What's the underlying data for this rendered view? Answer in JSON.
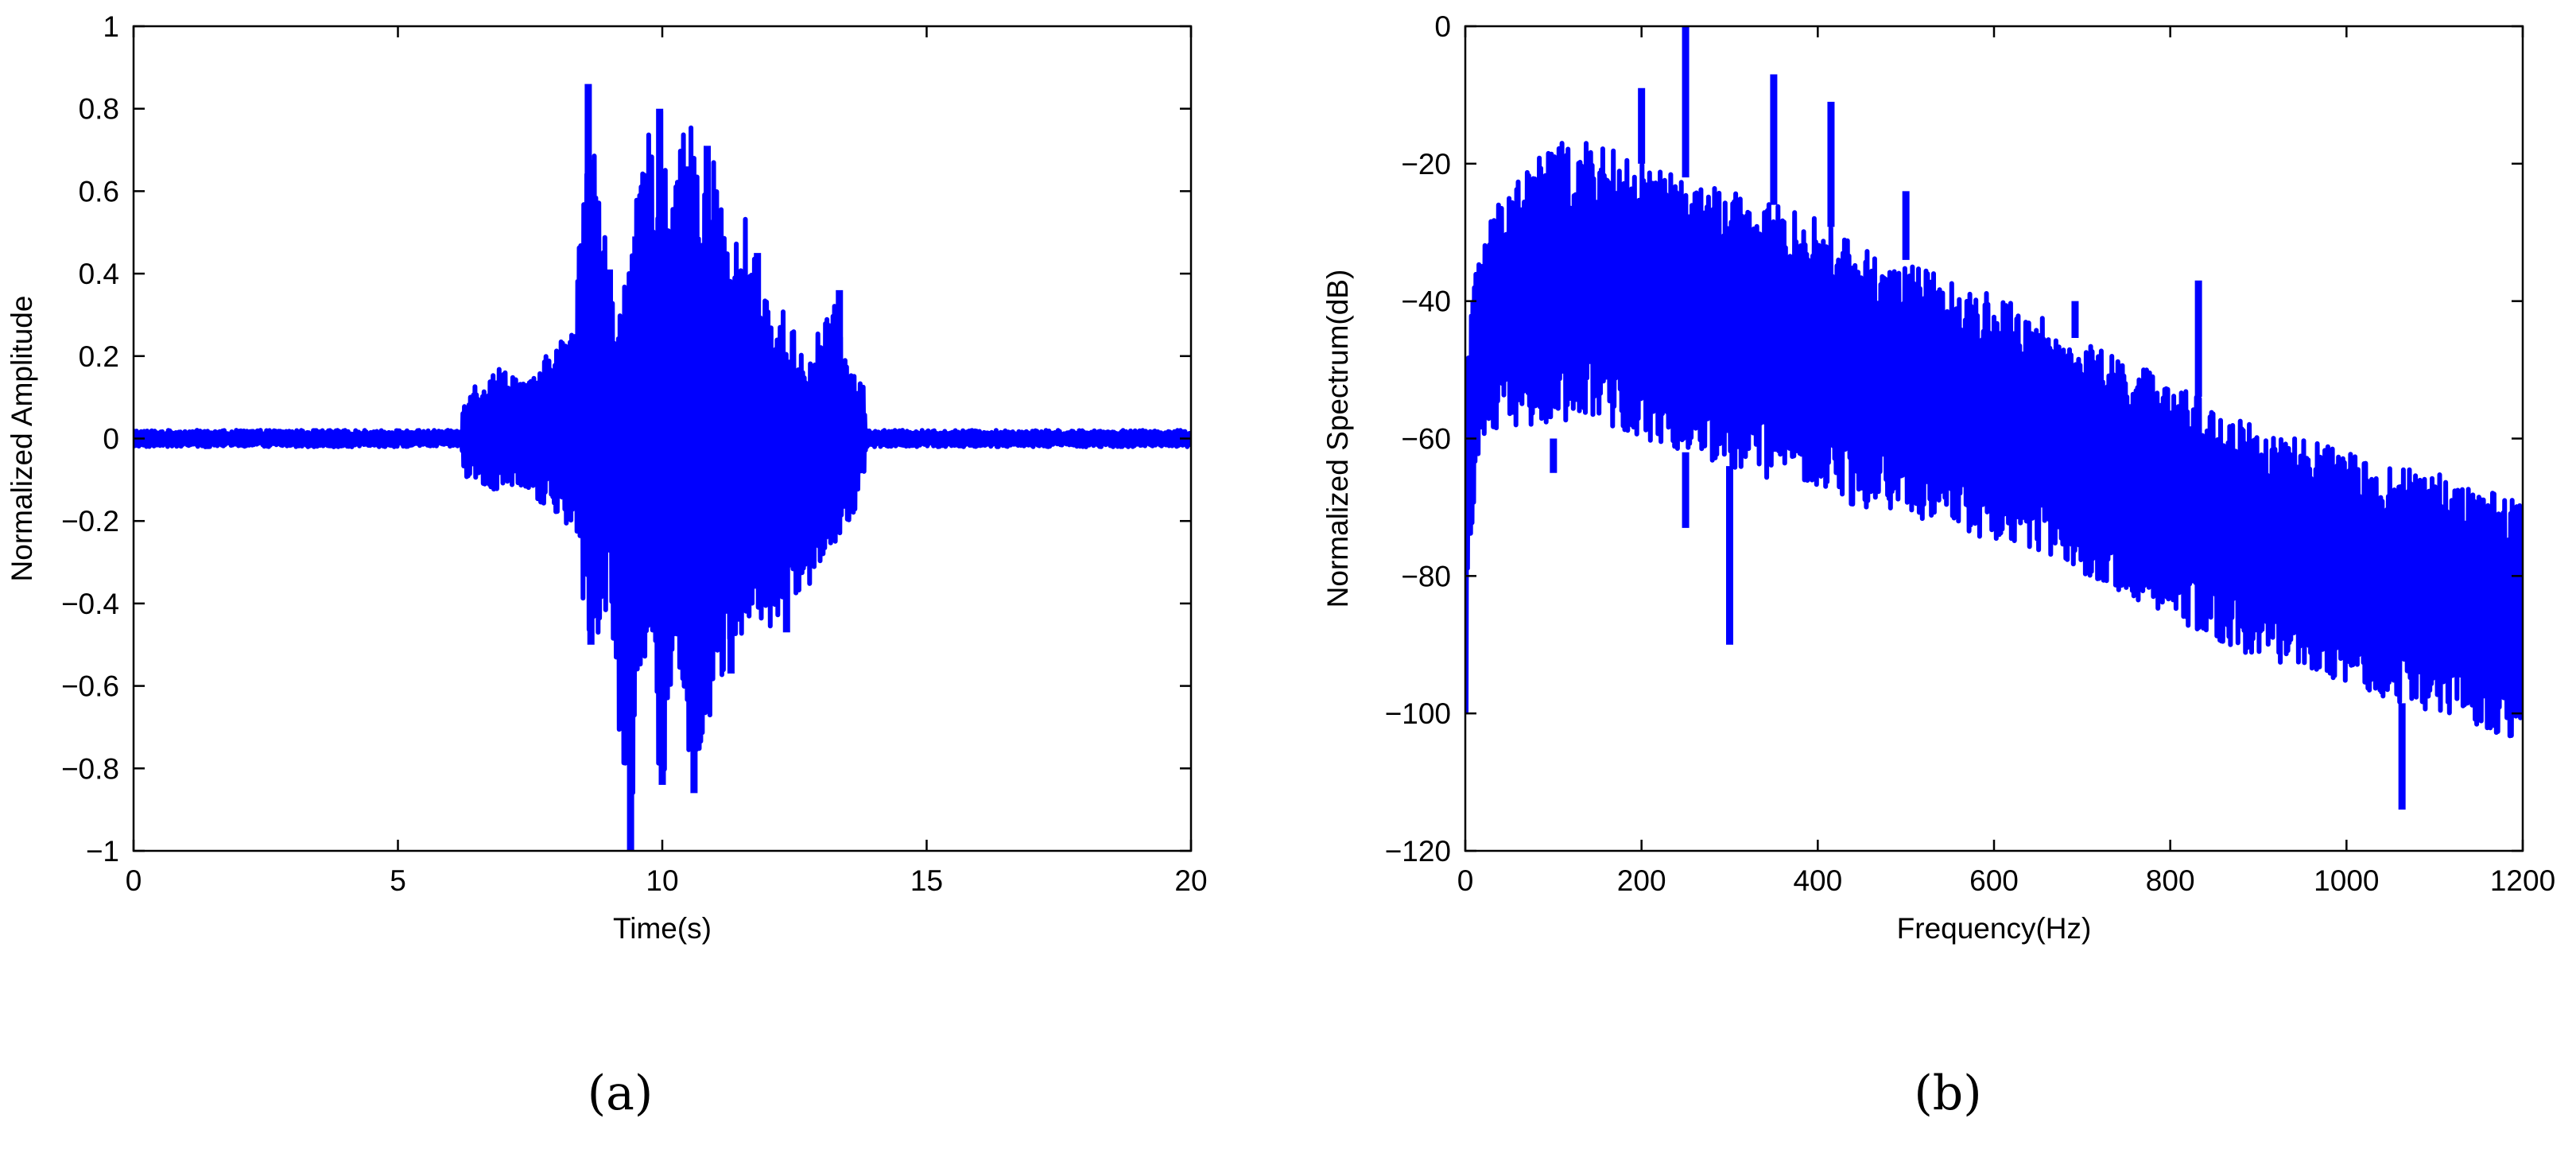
{
  "panels": [
    {
      "caption": "(a)",
      "chart_data": {
        "type": "line",
        "title": "",
        "xlabel": "Time(s)",
        "ylabel": "Normalized Amplitude",
        "xlim": [
          0,
          20
        ],
        "ylim": [
          -1,
          1
        ],
        "xticks": [
          0,
          5,
          10,
          15,
          20
        ],
        "xtick_labels": [
          "0",
          "5",
          "10",
          "15",
          "20"
        ],
        "yticks": [
          1,
          0.8,
          0.6,
          0.4,
          0.2,
          0,
          -0.2,
          -0.4,
          -0.6,
          -0.8,
          -1
        ],
        "ytick_labels": [
          "1",
          "0.8",
          "0.6",
          "0.4",
          "0.2",
          "0",
          "−0.2",
          "−0.4",
          "−0.6",
          "−0.8",
          "−1"
        ],
        "grid": false,
        "legend": "none",
        "series": [
          {
            "color": "#0000ff",
            "envelope": {
              "x": [
                0,
                6.2,
                6.25,
                7.0,
                7.5,
                8.0,
                8.3,
                8.6,
                9.0,
                9.4,
                9.6,
                10.0,
                10.3,
                10.6,
                10.8,
                11.0,
                11.3,
                11.6,
                12.0,
                12.4,
                12.8,
                13.2,
                13.5,
                13.8,
                13.85,
                20
              ],
              "max": [
                0.02,
                0.02,
                0.12,
                0.18,
                0.14,
                0.24,
                0.26,
                0.86,
                0.41,
                0.4,
                0.72,
                0.8,
                0.73,
                0.76,
                0.6,
                0.71,
                0.45,
                0.55,
                0.32,
                0.31,
                0.2,
                0.36,
                0.2,
                0.14,
                0.02,
                0.02
              ],
              "min": [
                -0.02,
                -0.02,
                -0.1,
                -0.14,
                -0.13,
                -0.2,
                -0.22,
                -0.5,
                -0.45,
                -1.0,
                -0.55,
                -0.84,
                -0.7,
                -0.86,
                -0.75,
                -0.66,
                -0.56,
                -0.45,
                -0.48,
                -0.42,
                -0.35,
                -0.26,
                -0.22,
                -0.12,
                -0.02,
                -0.02
              ]
            },
            "spikes": [
              {
                "x": 8.6,
                "y": 0.86
              },
              {
                "x": 9.0,
                "y": 0.41
              },
              {
                "x": 9.5,
                "y": 0.49
              },
              {
                "x": 9.95,
                "y": 0.8
              },
              {
                "x": 10.45,
                "y": 0.66
              },
              {
                "x": 10.85,
                "y": 0.71
              },
              {
                "x": 11.8,
                "y": 0.45
              },
              {
                "x": 13.35,
                "y": 0.36
              },
              {
                "x": 9.4,
                "y": -1.0
              },
              {
                "x": 10.0,
                "y": -0.84
              },
              {
                "x": 10.6,
                "y": -0.86
              },
              {
                "x": 11.3,
                "y": -0.57
              },
              {
                "x": 12.35,
                "y": -0.47
              },
              {
                "x": 8.65,
                "y": -0.5
              }
            ]
          }
        ]
      }
    },
    {
      "caption": "(b)",
      "chart_data": {
        "type": "line",
        "title": "",
        "xlabel": "Frequency(Hz)",
        "ylabel": "Normalized Spectrum(dB)",
        "xlim": [
          0,
          1200
        ],
        "ylim": [
          -120,
          0
        ],
        "xticks": [
          0,
          200,
          400,
          600,
          800,
          1000,
          1200
        ],
        "xtick_labels": [
          "0",
          "200",
          "400",
          "600",
          "800",
          "1000",
          "1200"
        ],
        "yticks": [
          0,
          -20,
          -40,
          -60,
          -80,
          -100,
          -120
        ],
        "ytick_labels": [
          "0",
          "−20",
          "−40",
          "−60",
          "−80",
          "−100",
          "−120"
        ],
        "grid": false,
        "legend": "none",
        "series": [
          {
            "color": "#0000ff",
            "envelope": {
              "x": [
                0,
                5,
                20,
                50,
                100,
                150,
                200,
                250,
                300,
                350,
                400,
                450,
                500,
                550,
                600,
                650,
                700,
                750,
                800,
                850,
                900,
                950,
                1000,
                1050,
                1100,
                1150,
                1200
              ],
              "max": [
                -48,
                -40,
                -30,
                -22,
                -17,
                -17,
                -20,
                -22,
                -24,
                -26,
                -28,
                -32,
                -34,
                -37,
                -39,
                -42,
                -46,
                -48,
                -52,
                -55,
                -58,
                -60,
                -62,
                -64,
                -65,
                -67,
                -68
              ],
              "min": [
                -105,
                -75,
                -62,
                -58,
                -60,
                -58,
                -60,
                -62,
                -64,
                -66,
                -68,
                -70,
                -71,
                -73,
                -75,
                -77,
                -80,
                -83,
                -86,
                -89,
                -92,
                -94,
                -96,
                -98,
                -100,
                -102,
                -104
              ]
            },
            "spikes": [
              {
                "x": 200,
                "y": -9
              },
              {
                "x": 250,
                "y": 0
              },
              {
                "x": 350,
                "y": -7
              },
              {
                "x": 415,
                "y": -11
              },
              {
                "x": 500,
                "y": -24
              },
              {
                "x": 692,
                "y": -40
              },
              {
                "x": 832,
                "y": -37
              },
              {
                "x": 300,
                "y": -90
              },
              {
                "x": 250,
                "y": -73
              },
              {
                "x": 100,
                "y": -65
              },
              {
                "x": 1063,
                "y": -114
              }
            ]
          }
        ]
      }
    }
  ]
}
